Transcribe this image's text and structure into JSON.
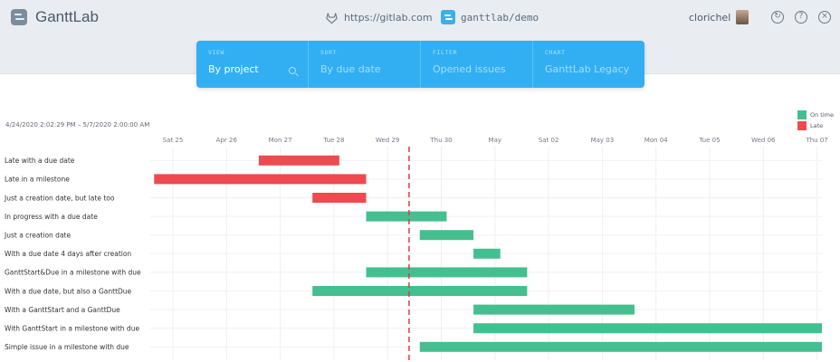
{
  "app": {
    "name": "GanttLab",
    "source_url": "https://gitlab.com",
    "project": "ganttlab/demo",
    "user": "clorichel"
  },
  "header_icons": {
    "refresh": "refresh-icon",
    "help": "help-icon",
    "close": "close-icon"
  },
  "filters": [
    {
      "label": "VIEW",
      "value": "By project",
      "active": true
    },
    {
      "label": "SORT",
      "value": "By due date",
      "active": false
    },
    {
      "label": "FILTER",
      "value": "Opened issues",
      "active": false
    },
    {
      "label": "CHART",
      "value": "GanttLab Legacy",
      "active": false
    }
  ],
  "date_range": "4/24/2020 2:02:29 PM – 5/7/2020 2:00:00 AM",
  "legend": [
    {
      "label": "On time",
      "color": "#44bf90"
    },
    {
      "label": "Late",
      "color": "#ee4a50"
    }
  ],
  "chart_data": {
    "type": "gantt",
    "axis_ticks": [
      "Sat 25",
      "Apr 26",
      "Mon 27",
      "Tue 28",
      "Wed 29",
      "Thu 30",
      "May",
      "Sat 02",
      "May 03",
      "Mon 04",
      "Tue 05",
      "Wed 06",
      "Thu 07"
    ],
    "today_marker_day": 4.4,
    "range_days": [
      -0.35,
      12.2
    ],
    "rows": [
      {
        "label": "Late with a due date",
        "start": 1.6,
        "end": 3.1,
        "status": "late"
      },
      {
        "label": "Late in a milestone",
        "start": -0.35,
        "end": 3.6,
        "status": "late"
      },
      {
        "label": "Just a creation date, but late too",
        "start": 2.6,
        "end": 3.6,
        "status": "late"
      },
      {
        "label": "In progress with a due date",
        "start": 3.6,
        "end": 5.1,
        "status": "on-time"
      },
      {
        "label": "Just a creation date",
        "start": 4.6,
        "end": 5.6,
        "status": "on-time"
      },
      {
        "label": "With a due date 4 days after creation",
        "start": 5.6,
        "end": 6.1,
        "status": "on-time"
      },
      {
        "label": "GanttStart&Due in a milestone with due",
        "start": 3.6,
        "end": 6.6,
        "status": "on-time"
      },
      {
        "label": "With a due date, but also a GanttDue",
        "start": 2.6,
        "end": 6.6,
        "status": "on-time"
      },
      {
        "label": "With a GanttStart and a GanttDue",
        "start": 5.6,
        "end": 8.6,
        "status": "on-time"
      },
      {
        "label": "With GanttStart in a milestone with due",
        "start": 5.6,
        "end": 12.1,
        "status": "on-time"
      },
      {
        "label": "Simple issue in a milestone with due",
        "start": 4.6,
        "end": 12.1,
        "status": "on-time"
      }
    ]
  }
}
